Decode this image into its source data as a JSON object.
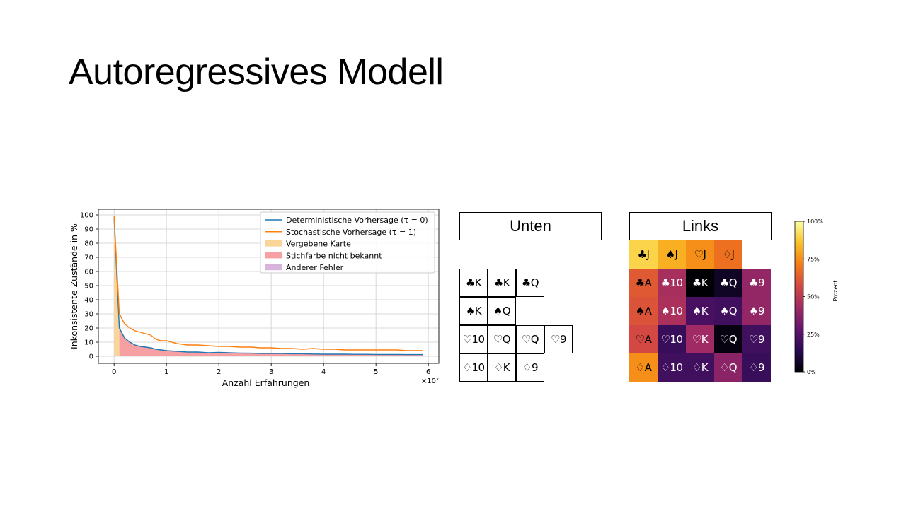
{
  "slide": {
    "title": "Autoregressives Modell"
  },
  "chart_data": {
    "type": "area",
    "xlabel": "Anzahl Erfahrungen",
    "ylabel": "Inkonsistente Zustände in %",
    "x_multiplier_label": "×10⁷",
    "xlim": [
      -0.3,
      6.2
    ],
    "ylim": [
      -5,
      104
    ],
    "x_ticks": [
      0,
      1,
      2,
      3,
      4,
      5,
      6
    ],
    "y_ticks": [
      0,
      10,
      20,
      30,
      40,
      50,
      60,
      70,
      80,
      90,
      100
    ],
    "grid": true,
    "legend_position": "top-right",
    "legend": [
      {
        "label": "Deterministische Vorhersage (τ = 0)",
        "kind": "line",
        "color": "#1f77b4"
      },
      {
        "label": "Stochastische Vorhersage (τ = 1)",
        "kind": "line",
        "color": "#ff7f0e"
      },
      {
        "label": "Vergebene Karte",
        "kind": "patch",
        "color": "#f9d59a"
      },
      {
        "label": "Stichfarbe nicht bekannt",
        "kind": "patch",
        "color": "#f7a0a3"
      },
      {
        "label": "Anderer Fehler",
        "kind": "patch",
        "color": "#d8b3dc"
      }
    ],
    "x": [
      0,
      0.1,
      0.2,
      0.3,
      0.4,
      0.5,
      0.6,
      0.7,
      0.8,
      0.9,
      1.0,
      1.2,
      1.4,
      1.6,
      1.8,
      2.0,
      2.2,
      2.4,
      2.6,
      2.8,
      3.0,
      3.2,
      3.4,
      3.6,
      3.8,
      4.0,
      4.2,
      4.4,
      4.6,
      4.8,
      5.0,
      5.2,
      5.4,
      5.6,
      5.9
    ],
    "series": [
      {
        "name": "Deterministische Vorhersage (τ = 0)",
        "color": "#1f77b4",
        "values": [
          98,
          20,
          13,
          10,
          8,
          7,
          6.5,
          6,
          5,
          4.5,
          4,
          3.5,
          3,
          3,
          2.5,
          2.8,
          2.5,
          2.3,
          2.2,
          2,
          2,
          2,
          1.8,
          1.8,
          1.6,
          1.5,
          1.5,
          1.5,
          1.4,
          1.4,
          1.3,
          1.3,
          1.3,
          1.2,
          1.2
        ]
      },
      {
        "name": "Stochastische Vorhersage (τ = 1)",
        "color": "#ff7f0e",
        "values": [
          99,
          30,
          23,
          20,
          18,
          17,
          16,
          15,
          12,
          11,
          11,
          9,
          8,
          8,
          7.5,
          7,
          7,
          6.5,
          6.5,
          6,
          6,
          5.5,
          5.5,
          5,
          5.5,
          5,
          5,
          4.5,
          4.5,
          4.5,
          4.5,
          4.5,
          4.5,
          4,
          4
        ]
      }
    ],
    "areas": [
      {
        "name": "Vergebene Karte",
        "color": "#f9d59a",
        "x": [
          0,
          0.1
        ],
        "values": [
          98,
          20
        ]
      },
      {
        "name": "Stichfarbe nicht bekannt",
        "color": "#f7a0a3",
        "x": [
          0.1,
          5.9
        ],
        "values_ref": 0
      }
    ]
  },
  "panels": {
    "unten": {
      "title": "Unten",
      "rows": [
        [
          "♣K",
          "♣K",
          "♣Q"
        ],
        [
          "♠K",
          "♠Q"
        ],
        [
          "♡10",
          "♡Q",
          "♡Q",
          "♡9"
        ],
        [
          "♢10",
          "♢K",
          "♢9"
        ]
      ]
    },
    "links": {
      "title": "Links",
      "rows": [
        [
          {
            "label": "♣J",
            "p": 0.9
          },
          {
            "label": "♠J",
            "p": 0.82
          },
          {
            "label": "♡J",
            "p": 0.75
          },
          {
            "label": "♢J",
            "p": 0.68
          }
        ],
        [
          {
            "label": "♣A",
            "p": 0.62
          },
          {
            "label": "♣10",
            "p": 0.45
          },
          {
            "label": "♣K",
            "p": 0.0
          },
          {
            "label": "♣Q",
            "p": 0.06
          },
          {
            "label": "♣9",
            "p": 0.4
          }
        ],
        [
          {
            "label": "♠A",
            "p": 0.6
          },
          {
            "label": "♠10",
            "p": 0.46
          },
          {
            "label": "♠K",
            "p": 0.22
          },
          {
            "label": "♠Q",
            "p": 0.2
          },
          {
            "label": "♠9",
            "p": 0.4
          }
        ],
        [
          {
            "label": "♡A",
            "p": 0.57
          },
          {
            "label": "♡10",
            "p": 0.18
          },
          {
            "label": "♡K",
            "p": 0.43
          },
          {
            "label": "♡Q",
            "p": 0.02
          },
          {
            "label": "♡9",
            "p": 0.2
          }
        ],
        [
          {
            "label": "♢A",
            "p": 0.75
          },
          {
            "label": "♢10",
            "p": 0.2
          },
          {
            "label": "♢K",
            "p": 0.2
          },
          {
            "label": "♢Q",
            "p": 0.38
          },
          {
            "label": "♢9",
            "p": 0.18
          }
        ]
      ]
    },
    "colorbar": {
      "label": "Prozent",
      "ticks": [
        "0%",
        "25%",
        "50%",
        "75%",
        "100%"
      ],
      "colormap": "inferno"
    }
  }
}
